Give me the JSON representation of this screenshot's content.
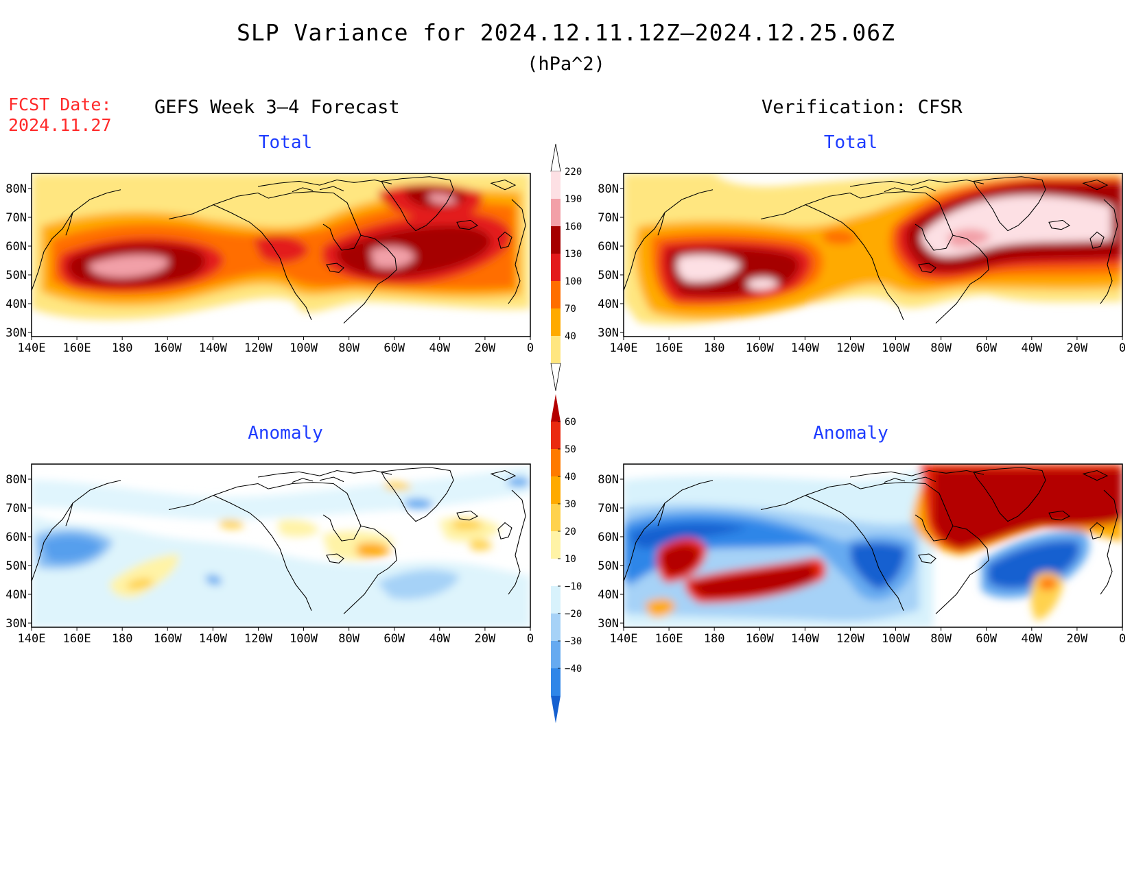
{
  "title": "SLP Variance for 2024.12.11.12Z–2024.12.25.06Z",
  "units": "(hPa^2)",
  "forecast_date": {
    "label": "FCST Date:",
    "value": "2024.11.27"
  },
  "columns": {
    "left_heading": "GEFS Week 3–4 Forecast",
    "right_heading": "Verification: CFSR"
  },
  "panels": {
    "top_left": "Total",
    "top_right": "Total",
    "bottom_left": "Anomaly",
    "bottom_right": "Anomaly"
  },
  "axes": {
    "lon_labels": [
      "140E",
      "160E",
      "180",
      "160W",
      "140W",
      "120W",
      "100W",
      "80W",
      "60W",
      "40W",
      "20W",
      "0"
    ],
    "lat_labels": [
      "80N",
      "70N",
      "60N",
      "50N",
      "40N",
      "30N"
    ]
  },
  "colorbar_total": {
    "labels": [
      "40",
      "70",
      "100",
      "130",
      "160",
      "190",
      "220"
    ],
    "colors": [
      "#ffe680",
      "#ffaa00",
      "#ff6e00",
      "#e31a1c",
      "#a50000",
      "#f2a0a8",
      "#fde0e4"
    ]
  },
  "colorbar_anomaly": {
    "labels": [
      "−40",
      "−30",
      "−20",
      "−10",
      "10",
      "20",
      "30",
      "40",
      "50",
      "60"
    ],
    "colors": [
      "#1560d0",
      "#2f86e8",
      "#66aaf0",
      "#a6d2f7",
      "#d8f2fc",
      "#ffffff",
      "#fff3a6",
      "#ffd24d",
      "#ffaa00",
      "#ff7a00",
      "#ea2a10",
      "#b40000"
    ]
  }
}
